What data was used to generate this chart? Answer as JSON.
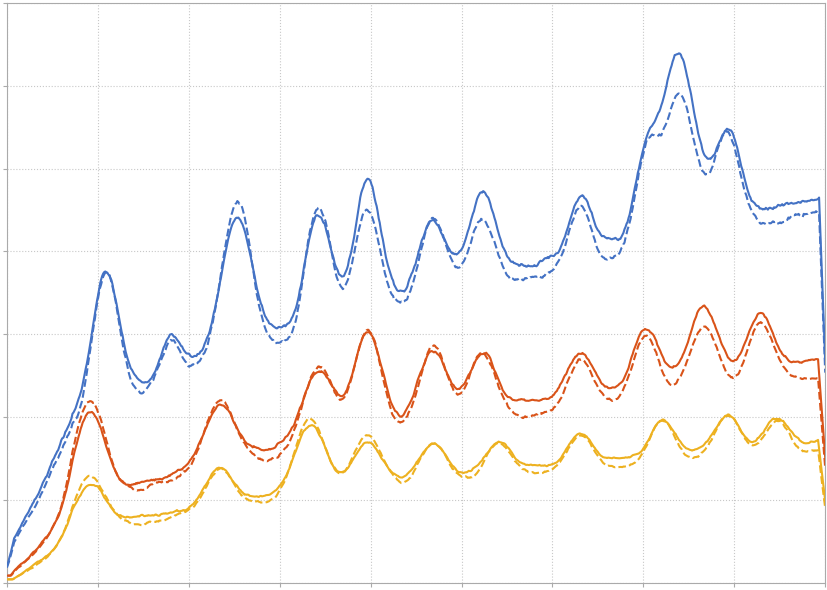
{
  "colors": {
    "blue": "#4472C4",
    "red": "#D95319",
    "yellow": "#EDB120"
  },
  "background": "#ffffff",
  "grid_color": "#c8c8c8",
  "figsize": [
    8.28,
    5.9
  ],
  "dpi": 100,
  "linewidth": 1.5
}
